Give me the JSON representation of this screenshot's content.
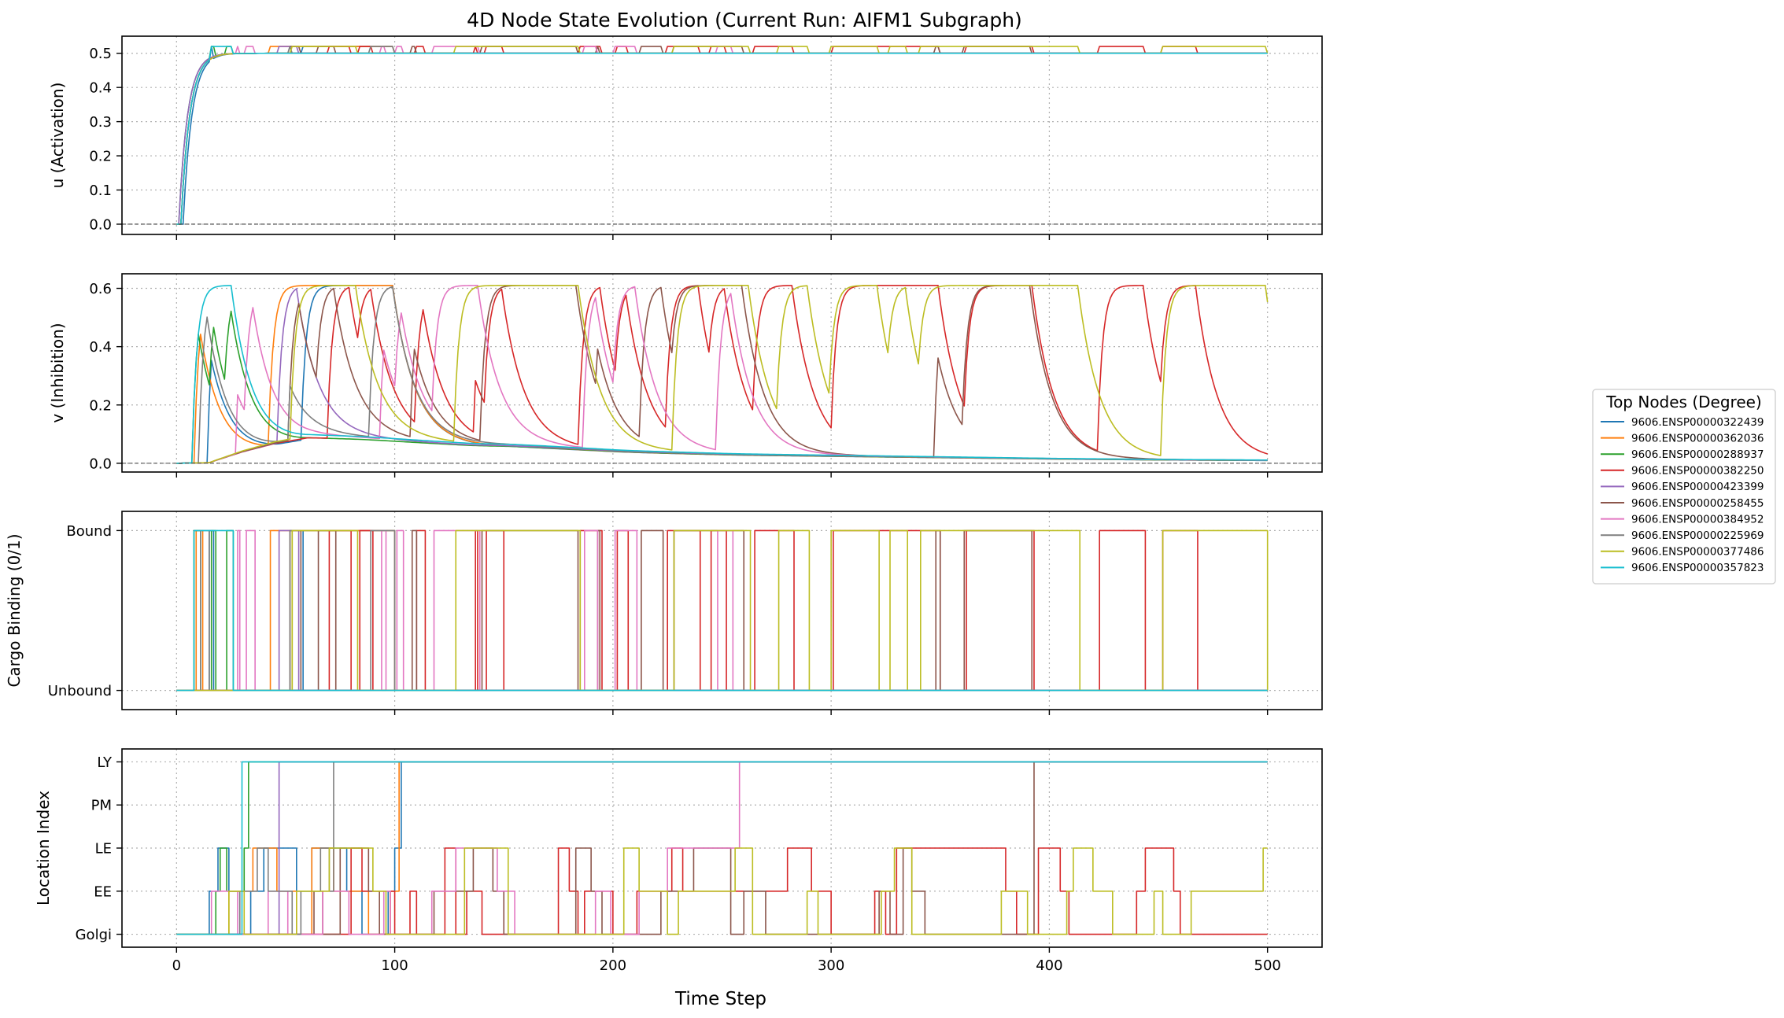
{
  "chart_data": {
    "type": "line",
    "title": "4D Node State Evolution (Current Run: AIFM1 Subgraph)",
    "xlabel": "Time Step",
    "xlim": [
      -25,
      525
    ],
    "x_ticks": [
      0,
      100,
      200,
      300,
      400,
      500
    ],
    "grid": true,
    "legend": {
      "title": "Top Nodes (Degree)",
      "placement": "right"
    },
    "series": [
      {
        "name": "9606.ENSP00000322439",
        "color": "#1f77b4"
      },
      {
        "name": "9606.ENSP00000362036",
        "color": "#ff7f0e"
      },
      {
        "name": "9606.ENSP00000288937",
        "color": "#2ca02c"
      },
      {
        "name": "9606.ENSP00000382250",
        "color": "#d62728"
      },
      {
        "name": "9606.ENSP00000423399",
        "color": "#9467bd"
      },
      {
        "name": "9606.ENSP00000258455",
        "color": "#8c564b"
      },
      {
        "name": "9606.ENSP00000384952",
        "color": "#e377c2"
      },
      {
        "name": "9606.ENSP00000225969",
        "color": "#7f7f7f"
      },
      {
        "name": "9606.ENSP00000377486",
        "color": "#bcbd22"
      },
      {
        "name": "9606.ENSP00000357823",
        "color": "#17becf"
      }
    ],
    "panels": [
      {
        "ylabel": "u (Activation)",
        "ylim": [
          -0.03,
          0.55
        ],
        "yticks": [
          0.0,
          0.1,
          0.2,
          0.3,
          0.4,
          0.5
        ],
        "ytick_labels": [
          "0.0",
          "0.1",
          "0.2",
          "0.3",
          "0.4",
          "0.5"
        ],
        "baseline": 0,
        "description": "all nodes rise from 0 to about 0.5 within ~20 steps; bound nodes sit near 0.52",
        "onsets": [
          3,
          2,
          1,
          2,
          1,
          2,
          2,
          2,
          2,
          2
        ],
        "tau": 4,
        "plateau": 0.5,
        "bound_level": 0.52
      },
      {
        "ylabel": "v (Inhibition)",
        "ylim": [
          -0.03,
          0.65
        ],
        "yticks": [
          0.0,
          0.2,
          0.4,
          0.6
        ],
        "ytick_labels": [
          "0.0",
          "0.2",
          "0.4",
          "0.6"
        ],
        "baseline": 0,
        "background": {
          "x": [
            0,
            15,
            18,
            30,
            45,
            60,
            80,
            100,
            130,
            150,
            200,
            250,
            300,
            350,
            400,
            450,
            500
          ],
          "y": [
            0.0,
            0.002,
            0.01,
            0.04,
            0.07,
            0.09,
            0.085,
            0.075,
            0.062,
            0.06,
            0.04,
            0.03,
            0.025,
            0.02,
            0.015,
            0.012,
            0.01
          ]
        },
        "peak_cap": 0.61,
        "rise_rate": 0.35,
        "decay_tau": 10
      },
      {
        "ylabel": "Cargo Binding (0/1)",
        "ylim": [
          -0.12,
          1.12
        ],
        "yticks": [
          0,
          1
        ],
        "ytick_labels": [
          "Unbound",
          "Bound"
        ],
        "intervals_note": "bound intervals per series, [start, end] in time steps",
        "bound_intervals": [
          [
            [
              15,
              17
            ],
            [
              58,
              100
            ]
          ],
          [
            [
              9,
              12
            ],
            [
              43,
              58
            ],
            [
              58,
              100
            ]
          ],
          [
            [
              8,
              11
            ],
            [
              16,
              18
            ],
            [
              23,
              26
            ]
          ],
          [
            [
              70,
              80
            ],
            [
              84,
              90
            ],
            [
              110,
              114
            ],
            [
              137,
              138
            ],
            [
              142,
              150
            ],
            [
              185,
              195
            ],
            [
              202,
              207
            ],
            [
              225,
              240
            ],
            [
              245,
              252
            ],
            [
              265,
              283
            ],
            [
              301,
              350
            ],
            [
              362,
              393
            ],
            [
              423,
              444
            ],
            [
              452,
              468
            ]
          ],
          [
            [
              47,
              56
            ]
          ],
          [
            [
              52,
              57
            ],
            [
              65,
              73
            ],
            [
              108,
              110
            ],
            [
              140,
              184
            ],
            [
              193,
              194
            ],
            [
              213,
              223
            ],
            [
              228,
              260
            ],
            [
              348,
              350
            ],
            [
              361,
              392
            ]
          ],
          [
            [
              28,
              29
            ],
            [
              32,
              36
            ],
            [
              94,
              96
            ],
            [
              101,
              104
            ],
            [
              118,
              139
            ],
            [
              187,
              193
            ],
            [
              201,
              211
            ],
            [
              248,
              255
            ]
          ],
          [
            [
              11,
              15
            ],
            [
              52,
              53
            ],
            [
              89,
              100
            ]
          ],
          [
            [
              53,
              83
            ],
            [
              128,
              185
            ],
            [
              228,
              263
            ],
            [
              276,
              290
            ],
            [
              300,
              322
            ],
            [
              327,
              335
            ],
            [
              341,
              393
            ],
            [
              393,
              414
            ],
            [
              452,
              500
            ]
          ],
          [
            [
              8,
              26
            ]
          ]
        ]
      },
      {
        "ylabel": "Location Index",
        "ylim": [
          -0.3,
          4.3
        ],
        "yticks": [
          0,
          1,
          2,
          3,
          4
        ],
        "ytick_labels": [
          "Golgi",
          "EE",
          "LE",
          "PM",
          "LY"
        ],
        "steps": [
          [
            [
              0,
              0
            ],
            [
              15,
              1
            ],
            [
              19,
              2
            ],
            [
              24,
              1
            ],
            [
              29,
              0
            ],
            [
              34,
              1
            ],
            [
              40,
              2
            ],
            [
              55,
              1
            ],
            [
              62,
              2
            ],
            [
              78,
              1
            ],
            [
              85,
              0
            ],
            [
              97,
              1
            ],
            [
              100,
              2
            ],
            [
              103,
              4
            ]
          ],
          [
            [
              0,
              0
            ],
            [
              24,
              1
            ],
            [
              35,
              2
            ],
            [
              46,
              1
            ],
            [
              55,
              0
            ],
            [
              62,
              2
            ],
            [
              72,
              1
            ],
            [
              88,
              0
            ],
            [
              98,
              1
            ],
            [
              102,
              4
            ]
          ],
          [
            [
              0,
              0
            ],
            [
              18,
              1
            ],
            [
              20,
              2
            ],
            [
              23,
              1
            ],
            [
              31,
              2
            ],
            [
              33,
              4
            ]
          ],
          [
            [
              0,
              0
            ],
            [
              80,
              2
            ],
            [
              85,
              1
            ],
            [
              100,
              0
            ],
            [
              107,
              1
            ],
            [
              110,
              0
            ],
            [
              123,
              2
            ],
            [
              128,
              0
            ],
            [
              133,
              1
            ],
            [
              140,
              0
            ],
            [
              175,
              2
            ],
            [
              180,
              1
            ],
            [
              184,
              0
            ],
            [
              187,
              1
            ],
            [
              200,
              0
            ],
            [
              211,
              1
            ],
            [
              227,
              2
            ],
            [
              232,
              1
            ],
            [
              280,
              2
            ],
            [
              291,
              1
            ],
            [
              300,
              0
            ],
            [
              320,
              1
            ],
            [
              325,
              0
            ],
            [
              330,
              2
            ],
            [
              380,
              1
            ],
            [
              385,
              0
            ],
            [
              395,
              2
            ],
            [
              405,
              1
            ],
            [
              409,
              0
            ],
            [
              440,
              1
            ],
            [
              444,
              2
            ],
            [
              457,
              1
            ],
            [
              460,
              0
            ],
            [
              500,
              0
            ]
          ],
          [
            [
              0,
              0
            ],
            [
              47,
              4
            ]
          ],
          [
            [
              0,
              0
            ],
            [
              63,
              1
            ],
            [
              67,
              0
            ],
            [
              75,
              2
            ],
            [
              88,
              1
            ],
            [
              93,
              0
            ],
            [
              118,
              1
            ],
            [
              136,
              2
            ],
            [
              145,
              1
            ],
            [
              150,
              0
            ],
            [
              183,
              2
            ],
            [
              190,
              1
            ],
            [
              195,
              0
            ],
            [
              222,
              1
            ],
            [
              237,
              2
            ],
            [
              254,
              0
            ],
            [
              260,
              1
            ],
            [
              270,
              0
            ],
            [
              322,
              1
            ],
            [
              327,
              0
            ],
            [
              333,
              2
            ],
            [
              337,
              1
            ],
            [
              343,
              0
            ],
            [
              393,
              4
            ]
          ],
          [
            [
              0,
              0
            ],
            [
              16,
              1
            ],
            [
              28,
              0
            ],
            [
              42,
              1
            ],
            [
              51,
              0
            ],
            [
              67,
              1
            ],
            [
              79,
              0
            ],
            [
              95,
              1
            ],
            [
              98,
              0
            ],
            [
              117,
              1
            ],
            [
              128,
              2
            ],
            [
              147,
              1
            ],
            [
              155,
              0
            ],
            [
              192,
              1
            ],
            [
              199,
              0
            ],
            [
              212,
              1
            ],
            [
              225,
              2
            ],
            [
              258,
              4
            ]
          ],
          [
            [
              0,
              0
            ],
            [
              29,
              1
            ],
            [
              37,
              2
            ],
            [
              42,
              1
            ],
            [
              53,
              0
            ],
            [
              57,
              1
            ],
            [
              66,
              2
            ],
            [
              70,
              1
            ],
            [
              72,
              4
            ]
          ],
          [
            [
              0,
              0
            ],
            [
              24,
              1
            ],
            [
              31,
              0
            ],
            [
              55,
              1
            ],
            [
              70,
              2
            ],
            [
              90,
              1
            ],
            [
              96,
              0
            ],
            [
              132,
              2
            ],
            [
              152,
              0
            ],
            [
              205,
              2
            ],
            [
              212,
              1
            ],
            [
              225,
              0
            ],
            [
              230,
              1
            ],
            [
              256,
              2
            ],
            [
              264,
              0
            ],
            [
              289,
              1
            ],
            [
              294,
              0
            ],
            [
              323,
              1
            ],
            [
              329,
              2
            ],
            [
              337,
              0
            ],
            [
              378,
              1
            ],
            [
              390,
              0
            ],
            [
              408,
              1
            ],
            [
              411,
              2
            ],
            [
              420,
              1
            ],
            [
              429,
              0
            ],
            [
              448,
              1
            ],
            [
              452,
              0
            ],
            [
              465,
              1
            ],
            [
              498,
              2
            ],
            [
              500,
              2
            ]
          ],
          [
            [
              0,
              0
            ],
            [
              30,
              4
            ]
          ]
        ]
      }
    ]
  }
}
